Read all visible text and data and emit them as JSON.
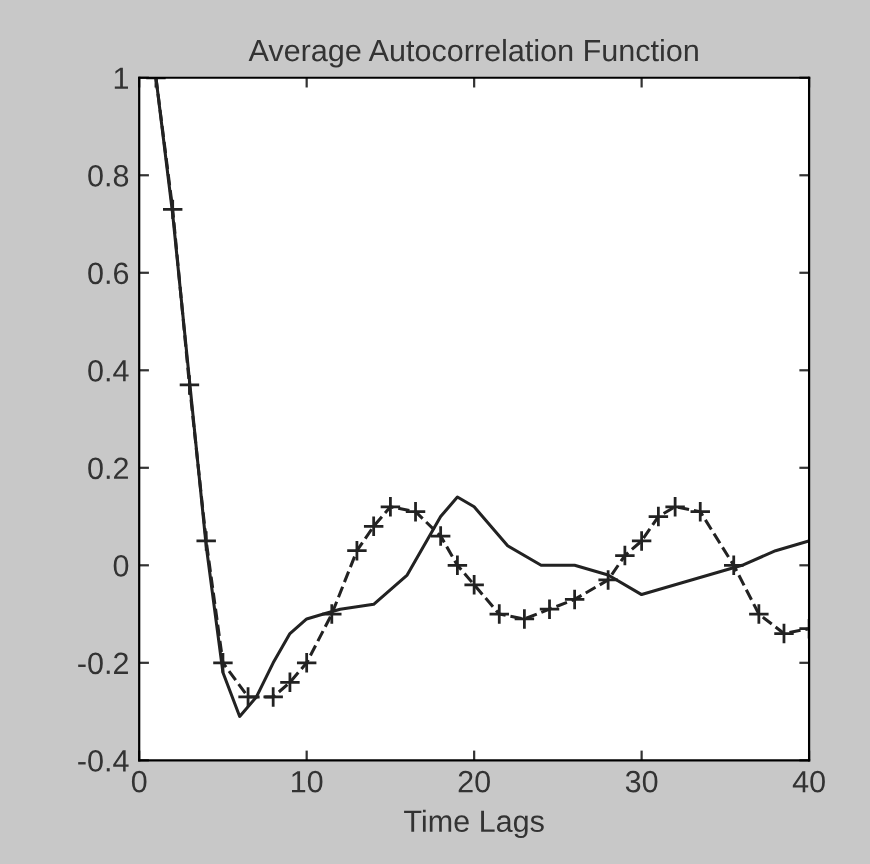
{
  "chart_data": {
    "type": "line",
    "title": "Average Autocorrelation Function",
    "xlabel": "Time Lags",
    "xlim": [
      0,
      40
    ],
    "ylim": [
      -0.4,
      1
    ],
    "xticks": [
      0,
      10,
      20,
      30,
      40
    ],
    "yticks": [
      -0.4,
      -0.2,
      0,
      0.2,
      0.4,
      0.6,
      0.8,
      1
    ],
    "grid": false,
    "legend": false,
    "series": [
      {
        "color": "#222222",
        "line_style": "solid",
        "marker": "none",
        "x": [
          1,
          2,
          3,
          4,
          5,
          6,
          7,
          8,
          9,
          10,
          11,
          12,
          14,
          16,
          18,
          19,
          20,
          22,
          24,
          26,
          28,
          30,
          32,
          34,
          36,
          38,
          40
        ],
        "values": [
          1,
          0.72,
          0.38,
          0.04,
          -0.22,
          -0.31,
          -0.27,
          -0.2,
          -0.14,
          -0.11,
          -0.1,
          -0.09,
          -0.08,
          -0.02,
          0.1,
          0.14,
          0.12,
          0.04,
          0.0,
          0.0,
          -0.02,
          -0.06,
          -0.04,
          -0.02,
          0.0,
          0.03,
          0.05
        ]
      },
      {
        "color": "#222222",
        "line_style": "dashed",
        "marker": "cross",
        "x": [
          1,
          2,
          3,
          4,
          5,
          6.5,
          8,
          9,
          10,
          11.5,
          13,
          14,
          15,
          16.5,
          18,
          19,
          20,
          21.5,
          23,
          24.5,
          26,
          28,
          29,
          30,
          31,
          32,
          33.5,
          35.5,
          37,
          38.5,
          40
        ],
        "values": [
          1,
          0.73,
          0.37,
          0.05,
          -0.2,
          -0.27,
          -0.27,
          -0.24,
          -0.2,
          -0.1,
          0.03,
          0.08,
          0.12,
          0.11,
          0.06,
          0.0,
          -0.04,
          -0.1,
          -0.11,
          -0.09,
          -0.07,
          -0.03,
          0.02,
          0.05,
          0.1,
          0.12,
          0.11,
          0.0,
          -0.1,
          -0.14,
          -0.13
        ]
      }
    ]
  }
}
